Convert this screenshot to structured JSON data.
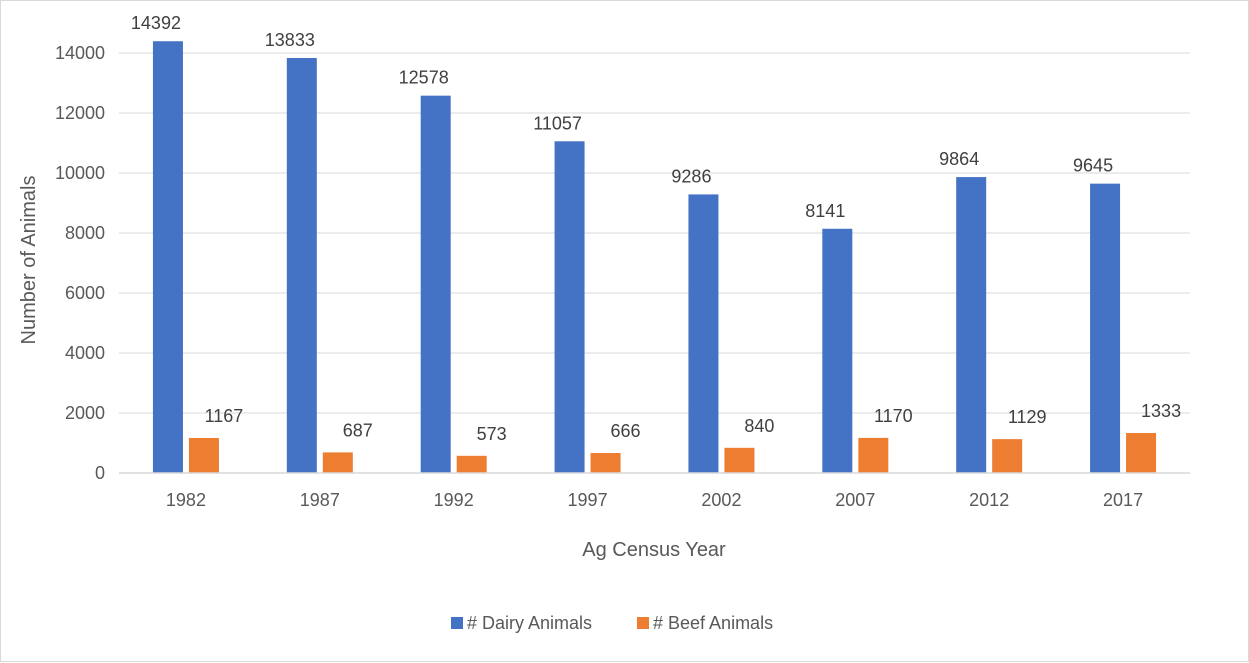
{
  "chart_data": {
    "type": "bar",
    "title": "",
    "xlabel": "Ag Census Year",
    "ylabel": "Number of Animals",
    "categories": [
      "1982",
      "1987",
      "1992",
      "1997",
      "2002",
      "2007",
      "2012",
      "2017"
    ],
    "series": [
      {
        "name": "# Dairy Animals",
        "color": "#4472C4",
        "values": [
          14392,
          13833,
          12578,
          11057,
          9286,
          8141,
          9864,
          9645
        ]
      },
      {
        "name": "# Beef Animals",
        "color": "#ED7D31",
        "values": [
          1167,
          687,
          573,
          666,
          840,
          1170,
          1129,
          1333
        ]
      }
    ],
    "ylim": [
      0,
      14000
    ],
    "yticks": [
      0,
      2000,
      4000,
      6000,
      8000,
      10000,
      12000,
      14000
    ],
    "grid": true,
    "legend": "bottom",
    "data_labels": true
  }
}
